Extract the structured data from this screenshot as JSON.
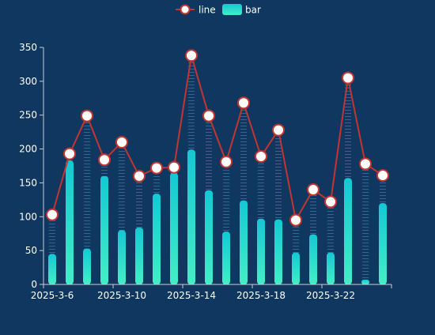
{
  "chart_data": {
    "type": "bar",
    "title": "",
    "legend": {
      "position": "top-center",
      "items": [
        {
          "key": "line",
          "label": "line"
        },
        {
          "key": "bar",
          "label": "bar"
        }
      ]
    },
    "x": [
      "2025-3-6",
      "2025-3-7",
      "2025-3-8",
      "2025-3-9",
      "2025-3-10",
      "2025-3-11",
      "2025-3-12",
      "2025-3-13",
      "2025-3-14",
      "2025-3-15",
      "2025-3-16",
      "2025-3-17",
      "2025-3-18",
      "2025-3-19",
      "2025-3-20",
      "2025-3-21",
      "2025-3-22",
      "2025-3-23",
      "2025-3-24",
      "2025-3-25"
    ],
    "x_tick_labels": [
      "2025-3-6",
      "2025-3-10",
      "2025-3-14",
      "2025-3-18",
      "2025-3-22"
    ],
    "series": [
      {
        "name": "line",
        "type": "line",
        "values": [
          103,
          193,
          249,
          184,
          210,
          160,
          172,
          173,
          338,
          249,
          181,
          268,
          189,
          228,
          95,
          140,
          122,
          305,
          178,
          161
        ]
      },
      {
        "name": "bar",
        "type": "bar",
        "values": [
          45,
          183,
          53,
          160,
          80,
          84,
          134,
          165,
          199,
          139,
          78,
          124,
          97,
          96,
          47,
          74,
          47,
          157,
          7,
          120
        ]
      }
    ],
    "ylim": [
      0,
      350
    ],
    "y_ticks": [
      0,
      50,
      100,
      150,
      200,
      250,
      300,
      350
    ],
    "grid": false,
    "colors": {
      "background": "#0f375f",
      "line": "#c23531",
      "marker_fill": "#ffffff",
      "bar_top": "#14c8d4",
      "bar_bottom": "#43eec6",
      "dashed_bar": "#14c8d4",
      "axis": "#cccccc",
      "text": "#ffffff"
    }
  }
}
